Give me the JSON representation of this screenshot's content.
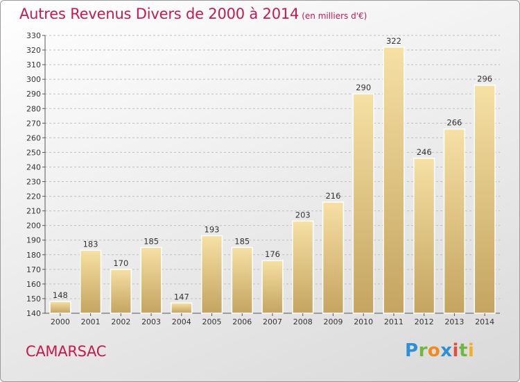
{
  "title": "Autres Revenus Divers de 2000 à 2014",
  "unit": "(en milliers d'€)",
  "commune": "CAMARSAC",
  "logo": {
    "letters": [
      "P",
      "r",
      "o",
      "x",
      "i",
      "t",
      "i"
    ]
  },
  "colors": {
    "accent": "#c8194f",
    "bar_light": "#f6e0a4",
    "bar_dark": "#c4a460",
    "grid": "#bfbfbf"
  },
  "chart_data": {
    "type": "bar",
    "title": "Autres Revenus Divers de 2000 à 2014",
    "subtitle": "(en milliers d'€)",
    "xlabel": "",
    "ylabel": "",
    "categories": [
      "2000",
      "2001",
      "2002",
      "2003",
      "2004",
      "2005",
      "2006",
      "2007",
      "2008",
      "2009",
      "2010",
      "2011",
      "2012",
      "2013",
      "2014"
    ],
    "values": [
      148,
      183,
      170,
      185,
      147,
      193,
      185,
      176,
      203,
      216,
      290,
      322,
      246,
      266,
      296
    ],
    "ylim": [
      140,
      330
    ],
    "yticks": [
      140,
      150,
      160,
      170,
      180,
      190,
      200,
      210,
      220,
      230,
      240,
      250,
      260,
      270,
      280,
      290,
      300,
      310,
      320,
      330
    ],
    "grid": "horizontal dashed",
    "legend": "none"
  }
}
